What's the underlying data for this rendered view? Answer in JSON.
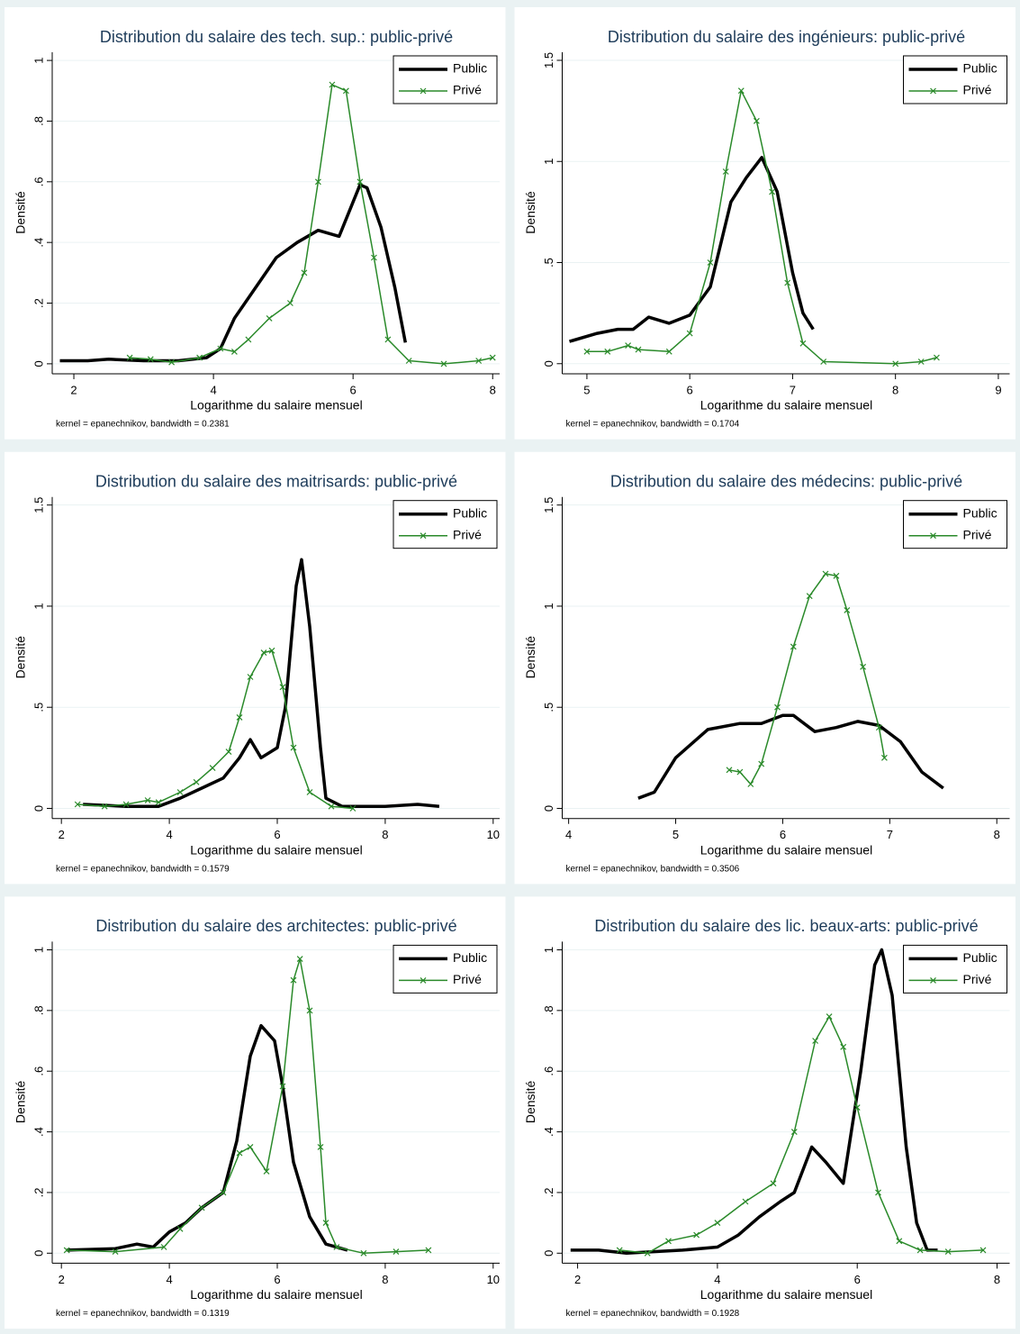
{
  "chart_data": [
    {
      "type": "line",
      "title": "Distribution du salaire des tech. sup.: public-privé",
      "x_label": "Logarithme du salaire mensuel",
      "y_label": "Densité",
      "note": "kernel = epanechnikov, bandwidth = 0.2381",
      "legend": "top-right",
      "grid": true,
      "xlim": [
        1.69,
        8.1
      ],
      "ylim": [
        -0.033,
        1.027
      ],
      "xticks": [
        2,
        4,
        6,
        8
      ],
      "yticks": [
        0,
        {
          "value": 0.2,
          "label": ".2"
        },
        {
          "value": 0.4,
          "label": ".4"
        },
        {
          "value": 0.6,
          "label": ".6"
        },
        {
          "value": 0.8,
          "label": ".8"
        },
        1
      ],
      "series": [
        {
          "name": "Public",
          "color": "#000000",
          "width": 3.5,
          "x": [
            1.8,
            2.2,
            2.5,
            3,
            3.5,
            3.9,
            4.1,
            4.3,
            4.6,
            4.9,
            5.2,
            5.5,
            5.8,
            6.1,
            6.2,
            6.4,
            6.6,
            6.75
          ],
          "values": [
            0.01,
            0.01,
            0.015,
            0.01,
            0.01,
            0.02,
            0.05,
            0.15,
            0.25,
            0.35,
            0.4,
            0.44,
            0.42,
            0.59,
            0.58,
            0.45,
            0.25,
            0.07
          ]
        },
        {
          "name": "Privé",
          "color": "#2a8a2a",
          "width": 1.5,
          "marker": "x",
          "x": [
            2.8,
            3.1,
            3.4,
            3.8,
            4.1,
            4.3,
            4.5,
            4.8,
            5.1,
            5.3,
            5.5,
            5.7,
            5.9,
            6.1,
            6.3,
            6.5,
            6.8,
            7.3,
            7.8,
            8.0
          ],
          "values": [
            0.02,
            0.015,
            0.005,
            0.02,
            0.05,
            0.04,
            0.08,
            0.15,
            0.2,
            0.3,
            0.6,
            0.92,
            0.9,
            0.6,
            0.35,
            0.08,
            0.01,
            0.0,
            0.01,
            0.02
          ]
        }
      ]
    },
    {
      "type": "line",
      "title": "Distribution du salaire des ingénieurs: public-privé",
      "x_label": "Logarithme du salaire mensuel",
      "y_label": "Densité",
      "note": "kernel = epanechnikov, bandwidth = 0.1704",
      "legend": "top-right",
      "grid": true,
      "xlim": [
        4.76,
        9.11
      ],
      "ylim": [
        -0.05,
        1.54
      ],
      "xticks": [
        5,
        6,
        7,
        8,
        9
      ],
      "yticks": [
        0,
        {
          "value": 0.5,
          "label": ".5"
        },
        1,
        1.5
      ],
      "series": [
        {
          "name": "Public",
          "color": "#000000",
          "width": 3.5,
          "x": [
            4.83,
            5.1,
            5.3,
            5.45,
            5.6,
            5.8,
            6.0,
            6.2,
            6.4,
            6.55,
            6.7,
            6.85,
            7.0,
            7.1,
            7.2
          ],
          "values": [
            0.11,
            0.15,
            0.17,
            0.17,
            0.23,
            0.2,
            0.24,
            0.38,
            0.8,
            0.92,
            1.02,
            0.85,
            0.45,
            0.25,
            0.17
          ]
        },
        {
          "name": "Privé",
          "color": "#2a8a2a",
          "width": 1.5,
          "marker": "x",
          "x": [
            5.0,
            5.2,
            5.4,
            5.5,
            5.8,
            6.0,
            6.2,
            6.35,
            6.5,
            6.65,
            6.8,
            6.95,
            7.1,
            7.3,
            8.0,
            8.25,
            8.4
          ],
          "values": [
            0.06,
            0.06,
            0.09,
            0.07,
            0.06,
            0.15,
            0.5,
            0.95,
            1.35,
            1.2,
            0.85,
            0.4,
            0.1,
            0.01,
            0.0,
            0.01,
            0.03
          ]
        }
      ]
    },
    {
      "type": "line",
      "title": "Distribution du salaire des maitrisards: public-privé",
      "x_label": "Logarithme du salaire mensuel",
      "y_label": "Densité",
      "note": "kernel = epanechnikov, bandwidth = 0.1579",
      "legend": "top-right",
      "grid": true,
      "xlim": [
        1.83,
        10.12
      ],
      "ylim": [
        -0.05,
        1.54
      ],
      "xticks": [
        2,
        4,
        6,
        8,
        10
      ],
      "yticks": [
        0,
        {
          "value": 0.5,
          "label": ".5"
        },
        1,
        1.5
      ],
      "series": [
        {
          "name": "Public",
          "color": "#000000",
          "width": 3.5,
          "x": [
            2.4,
            3.2,
            3.8,
            4.2,
            4.6,
            5.0,
            5.3,
            5.5,
            5.7,
            6.0,
            6.15,
            6.35,
            6.45,
            6.6,
            6.8,
            6.9,
            7.2,
            8.0,
            8.6,
            9.0
          ],
          "values": [
            0.02,
            0.01,
            0.01,
            0.05,
            0.1,
            0.15,
            0.25,
            0.34,
            0.25,
            0.3,
            0.5,
            1.1,
            1.23,
            0.9,
            0.3,
            0.05,
            0.01,
            0.01,
            0.02,
            0.01
          ]
        },
        {
          "name": "Privé",
          "color": "#2a8a2a",
          "width": 1.5,
          "marker": "x",
          "x": [
            2.3,
            2.8,
            3.2,
            3.6,
            3.8,
            4.2,
            4.5,
            4.8,
            5.1,
            5.3,
            5.5,
            5.75,
            5.9,
            6.1,
            6.3,
            6.6,
            7.0,
            7.4
          ],
          "values": [
            0.02,
            0.01,
            0.02,
            0.04,
            0.03,
            0.08,
            0.13,
            0.2,
            0.28,
            0.45,
            0.65,
            0.77,
            0.78,
            0.6,
            0.3,
            0.08,
            0.01,
            0.0
          ]
        }
      ]
    },
    {
      "type": "line",
      "title": "Distribution du salaire des médecins: public-privé",
      "x_label": "Logarithme du salaire mensuel",
      "y_label": "Densité",
      "note": "kernel = epanechnikov, bandwidth = 0.3506",
      "legend": "top-right",
      "grid": true,
      "xlim": [
        3.94,
        8.12
      ],
      "ylim": [
        -0.05,
        1.54
      ],
      "xticks": [
        4,
        5,
        6,
        7,
        8
      ],
      "yticks": [
        0,
        {
          "value": 0.5,
          "label": ".5"
        },
        1,
        1.5
      ],
      "series": [
        {
          "name": "Public",
          "color": "#000000",
          "width": 3.5,
          "x": [
            4.65,
            4.8,
            5.0,
            5.3,
            5.6,
            5.8,
            6.0,
            6.1,
            6.3,
            6.5,
            6.7,
            6.9,
            7.1,
            7.3,
            7.5
          ],
          "values": [
            0.05,
            0.08,
            0.25,
            0.39,
            0.42,
            0.42,
            0.46,
            0.46,
            0.38,
            0.4,
            0.43,
            0.41,
            0.33,
            0.18,
            0.1
          ]
        },
        {
          "name": "Privé",
          "color": "#2a8a2a",
          "width": 1.5,
          "marker": "x",
          "x": [
            5.5,
            5.6,
            5.7,
            5.8,
            5.95,
            6.1,
            6.25,
            6.4,
            6.5,
            6.6,
            6.75,
            6.9,
            6.95
          ],
          "values": [
            0.19,
            0.18,
            0.12,
            0.22,
            0.5,
            0.8,
            1.05,
            1.16,
            1.15,
            0.98,
            0.7,
            0.4,
            0.25
          ]
        }
      ]
    },
    {
      "type": "line",
      "title": "Distribution du salaire des architectes: public-privé",
      "x_label": "Logarithme du salaire mensuel",
      "y_label": "Densité",
      "note": "kernel = epanechnikov, bandwidth = 0.1319",
      "legend": "top-right",
      "grid": true,
      "xlim": [
        1.83,
        10.12
      ],
      "ylim": [
        -0.033,
        1.027
      ],
      "xticks": [
        2,
        4,
        6,
        8,
        10
      ],
      "yticks": [
        0,
        {
          "value": 0.2,
          "label": ".2"
        },
        {
          "value": 0.4,
          "label": ".4"
        },
        {
          "value": 0.6,
          "label": ".6"
        },
        {
          "value": 0.8,
          "label": ".8"
        },
        1
      ],
      "series": [
        {
          "name": "Public",
          "color": "#000000",
          "width": 3.5,
          "x": [
            2.1,
            3.0,
            3.4,
            3.7,
            4.0,
            4.3,
            4.6,
            5.0,
            5.25,
            5.5,
            5.7,
            5.95,
            6.1,
            6.3,
            6.6,
            6.9,
            7.3
          ],
          "values": [
            0.01,
            0.015,
            0.03,
            0.02,
            0.07,
            0.1,
            0.15,
            0.2,
            0.37,
            0.65,
            0.75,
            0.7,
            0.55,
            0.3,
            0.12,
            0.03,
            0.01
          ]
        },
        {
          "name": "Privé",
          "color": "#2a8a2a",
          "width": 1.5,
          "marker": "x",
          "x": [
            2.1,
            3.0,
            3.9,
            4.2,
            4.6,
            5.0,
            5.3,
            5.5,
            5.8,
            6.1,
            6.3,
            6.42,
            6.6,
            6.8,
            6.9,
            7.1,
            7.6,
            8.2,
            8.8
          ],
          "values": [
            0.01,
            0.005,
            0.02,
            0.08,
            0.15,
            0.2,
            0.33,
            0.35,
            0.27,
            0.55,
            0.9,
            0.97,
            0.8,
            0.35,
            0.1,
            0.02,
            0.0,
            0.005,
            0.01
          ]
        }
      ]
    },
    {
      "type": "line",
      "title": "Distribution du salaire des lic. beaux-arts: public-privé",
      "x_label": "Logarithme du salaire mensuel",
      "y_label": "Densité",
      "note": "kernel = epanechnikov, bandwidth = 0.1928",
      "legend": "top-right",
      "grid": true,
      "xlim": [
        1.78,
        8.18
      ],
      "ylim": [
        -0.033,
        1.027
      ],
      "xticks": [
        2,
        4,
        6,
        8
      ],
      "yticks": [
        0,
        {
          "value": 0.2,
          "label": ".2"
        },
        {
          "value": 0.4,
          "label": ".4"
        },
        {
          "value": 0.6,
          "label": ".6"
        },
        {
          "value": 0.8,
          "label": ".8"
        },
        1
      ],
      "series": [
        {
          "name": "Public",
          "color": "#000000",
          "width": 3.5,
          "x": [
            1.9,
            2.3,
            2.7,
            3.5,
            4.0,
            4.3,
            4.6,
            4.9,
            5.1,
            5.35,
            5.55,
            5.8,
            6.05,
            6.25,
            6.35,
            6.5,
            6.7,
            6.85,
            7.0,
            7.15
          ],
          "values": [
            0.01,
            0.01,
            0.0,
            0.01,
            0.02,
            0.06,
            0.12,
            0.17,
            0.2,
            0.35,
            0.3,
            0.23,
            0.6,
            0.95,
            1.0,
            0.85,
            0.35,
            0.1,
            0.01,
            0.01
          ]
        },
        {
          "name": "Privé",
          "color": "#2a8a2a",
          "width": 1.5,
          "marker": "x",
          "x": [
            2.6,
            3.0,
            3.3,
            3.7,
            4.0,
            4.4,
            4.8,
            5.1,
            5.4,
            5.6,
            5.8,
            6.0,
            6.3,
            6.6,
            6.9,
            7.3,
            7.8
          ],
          "values": [
            0.01,
            0.0,
            0.04,
            0.06,
            0.1,
            0.17,
            0.23,
            0.4,
            0.7,
            0.78,
            0.68,
            0.48,
            0.2,
            0.04,
            0.01,
            0.005,
            0.01
          ]
        }
      ]
    }
  ]
}
